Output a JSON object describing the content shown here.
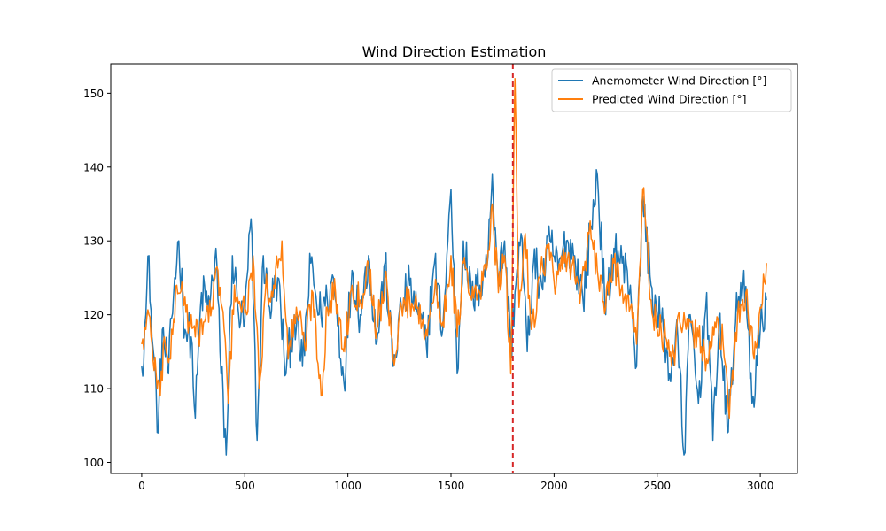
{
  "chart_data": {
    "type": "line",
    "title": "Wind Direction Estimation",
    "xlabel": "",
    "ylabel": "",
    "xlim": [
      -150,
      3180
    ],
    "ylim": [
      98.5,
      154
    ],
    "x_ticks": [
      0,
      500,
      1000,
      1500,
      2000,
      2500,
      3000
    ],
    "y_ticks": [
      100,
      110,
      120,
      130,
      140,
      150
    ],
    "grid": false,
    "legend_position": "top-right",
    "vline": {
      "x": 1800,
      "color": "#d62728",
      "style": "dashed"
    },
    "series": [
      {
        "name": "Anemometer Wind Direction [°]",
        "color": "#1f77b4",
        "anchors": [
          [
            0,
            113
          ],
          [
            20,
            120
          ],
          [
            35,
            128
          ],
          [
            50,
            117
          ],
          [
            70,
            110
          ],
          [
            80,
            104
          ],
          [
            100,
            118
          ],
          [
            130,
            112
          ],
          [
            160,
            125
          ],
          [
            180,
            130
          ],
          [
            210,
            118
          ],
          [
            240,
            117
          ],
          [
            260,
            106
          ],
          [
            290,
            123
          ],
          [
            330,
            121
          ],
          [
            360,
            129
          ],
          [
            380,
            115
          ],
          [
            410,
            101
          ],
          [
            440,
            128
          ],
          [
            470,
            120
          ],
          [
            500,
            119
          ],
          [
            530,
            133
          ],
          [
            560,
            103
          ],
          [
            590,
            128
          ],
          [
            620,
            121
          ],
          [
            660,
            125
          ],
          [
            700,
            112
          ],
          [
            740,
            120
          ],
          [
            780,
            113
          ],
          [
            820,
            127
          ],
          [
            860,
            120
          ],
          [
            900,
            122
          ],
          [
            930,
            125
          ],
          [
            980,
            111
          ],
          [
            1020,
            126
          ],
          [
            1060,
            120
          ],
          [
            1100,
            128
          ],
          [
            1140,
            116
          ],
          [
            1180,
            127
          ],
          [
            1220,
            113
          ],
          [
            1260,
            121
          ],
          [
            1300,
            124
          ],
          [
            1340,
            120
          ],
          [
            1380,
            116
          ],
          [
            1420,
            127
          ],
          [
            1460,
            118
          ],
          [
            1500,
            137
          ],
          [
            1530,
            112
          ],
          [
            1560,
            130
          ],
          [
            1600,
            122
          ],
          [
            1640,
            124
          ],
          [
            1680,
            128
          ],
          [
            1700,
            139
          ],
          [
            1730,
            125
          ],
          [
            1760,
            130
          ],
          [
            1790,
            115
          ],
          [
            1810,
            123
          ],
          [
            1840,
            131
          ],
          [
            1870,
            115
          ],
          [
            1900,
            127
          ],
          [
            1940,
            124
          ],
          [
            1980,
            130
          ],
          [
            2020,
            126
          ],
          [
            2060,
            130
          ],
          [
            2100,
            128
          ],
          [
            2140,
            122
          ],
          [
            2180,
            132
          ],
          [
            2210,
            139
          ],
          [
            2250,
            120
          ],
          [
            2290,
            129
          ],
          [
            2330,
            127
          ],
          [
            2370,
            124
          ],
          [
            2400,
            113
          ],
          [
            2430,
            136
          ],
          [
            2470,
            124
          ],
          [
            2500,
            120
          ],
          [
            2530,
            118
          ],
          [
            2560,
            112
          ],
          [
            2600,
            117
          ],
          [
            2630,
            101
          ],
          [
            2660,
            120
          ],
          [
            2700,
            108
          ],
          [
            2740,
            123
          ],
          [
            2770,
            103
          ],
          [
            2800,
            120
          ],
          [
            2840,
            104
          ],
          [
            2880,
            119
          ],
          [
            2920,
            126
          ],
          [
            2960,
            108
          ],
          [
            3000,
            118
          ],
          [
            3030,
            122
          ]
        ]
      },
      {
        "name": "Predicted Wind Direction [°]",
        "color": "#ff7f0e",
        "anchors": [
          [
            0,
            116
          ],
          [
            20,
            118
          ],
          [
            35,
            120
          ],
          [
            50,
            116
          ],
          [
            70,
            112
          ],
          [
            90,
            109
          ],
          [
            110,
            117
          ],
          [
            140,
            114
          ],
          [
            170,
            124
          ],
          [
            200,
            123
          ],
          [
            230,
            119
          ],
          [
            260,
            117
          ],
          [
            300,
            119
          ],
          [
            340,
            121
          ],
          [
            370,
            126
          ],
          [
            400,
            118
          ],
          [
            420,
            108
          ],
          [
            450,
            124
          ],
          [
            480,
            121
          ],
          [
            510,
            120
          ],
          [
            540,
            128
          ],
          [
            570,
            110
          ],
          [
            600,
            123
          ],
          [
            640,
            124
          ],
          [
            680,
            130
          ],
          [
            710,
            114
          ],
          [
            750,
            121
          ],
          [
            790,
            116
          ],
          [
            830,
            123
          ],
          [
            870,
            109
          ],
          [
            900,
            121
          ],
          [
            940,
            123
          ],
          [
            980,
            115
          ],
          [
            1020,
            124
          ],
          [
            1060,
            122
          ],
          [
            1100,
            127
          ],
          [
            1140,
            118
          ],
          [
            1180,
            125
          ],
          [
            1220,
            114
          ],
          [
            1260,
            121
          ],
          [
            1300,
            122
          ],
          [
            1340,
            121
          ],
          [
            1380,
            118
          ],
          [
            1420,
            123
          ],
          [
            1460,
            119
          ],
          [
            1500,
            128
          ],
          [
            1530,
            117
          ],
          [
            1560,
            127
          ],
          [
            1600,
            122
          ],
          [
            1640,
            123
          ],
          [
            1670,
            126
          ],
          [
            1700,
            135
          ],
          [
            1730,
            123
          ],
          [
            1760,
            128
          ],
          [
            1790,
            112
          ],
          [
            1810,
            152
          ],
          [
            1830,
            121
          ],
          [
            1860,
            131
          ],
          [
            1890,
            118
          ],
          [
            1930,
            125
          ],
          [
            1970,
            129
          ],
          [
            2010,
            124
          ],
          [
            2050,
            127
          ],
          [
            2090,
            127
          ],
          [
            2130,
            123
          ],
          [
            2170,
            131
          ],
          [
            2210,
            126
          ],
          [
            2250,
            121
          ],
          [
            2290,
            127
          ],
          [
            2330,
            124
          ],
          [
            2370,
            121
          ],
          [
            2400,
            116
          ],
          [
            2430,
            137
          ],
          [
            2470,
            122
          ],
          [
            2500,
            118
          ],
          [
            2540,
            117
          ],
          [
            2570,
            113
          ],
          [
            2610,
            119
          ],
          [
            2650,
            118
          ],
          [
            2700,
            117
          ],
          [
            2740,
            114
          ],
          [
            2780,
            119
          ],
          [
            2820,
            116
          ],
          [
            2850,
            106
          ],
          [
            2890,
            120
          ],
          [
            2930,
            123
          ],
          [
            2970,
            114
          ],
          [
            3000,
            121
          ],
          [
            3030,
            127
          ]
        ]
      }
    ]
  }
}
